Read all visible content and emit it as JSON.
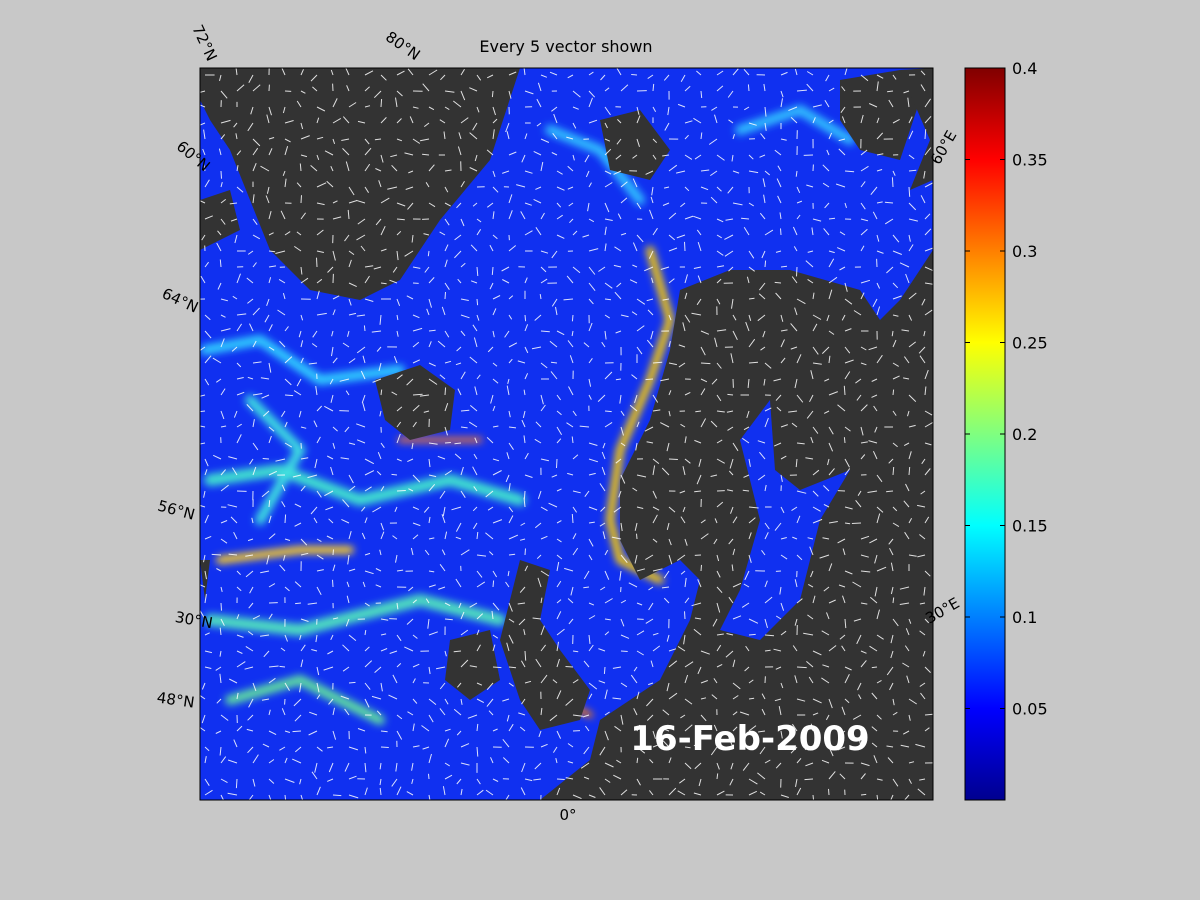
{
  "map": {
    "title": "Every 5 vector shown",
    "date_label": "16-Feb-2009",
    "lat_labels": [
      "72°N",
      "60°N",
      "64°N",
      "56°N",
      "30°N",
      "48°N"
    ],
    "lon_labels": [
      "80°N",
      "60°E",
      "30°E",
      "0°"
    ]
  },
  "colorbar": {
    "lim": [
      0,
      0.4
    ],
    "ticks": [
      0.05,
      0.1,
      0.15,
      0.2,
      0.25,
      0.3,
      0.35,
      0.4
    ]
  }
}
